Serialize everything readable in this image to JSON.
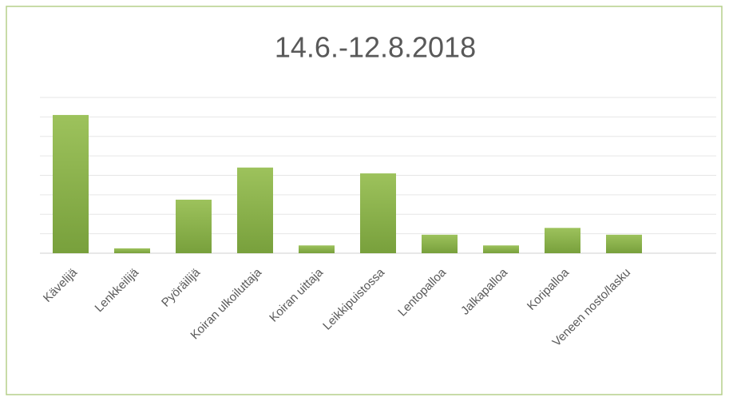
{
  "chart_data": {
    "type": "bar",
    "title": "14.6.-12.8.2018",
    "categories": [
      "Kävelijä",
      "Lenkkeilijä",
      "Pyöräilijä",
      "Koiran ulkoiluttaja",
      "Koiran uittaja",
      "Leikkipuistossa",
      "Lentopalloa",
      "Jalkapalloa",
      "Koripalloa",
      "Veneen nosto/lasku"
    ],
    "values": [
      7.1,
      0.25,
      2.75,
      4.4,
      0.4,
      4.1,
      0.95,
      0.4,
      1.3,
      0.95
    ],
    "color": "#8bb050",
    "ylim": [
      0,
      8
    ],
    "yticks": [
      0,
      1,
      2,
      3,
      4,
      5,
      6,
      7,
      8
    ],
    "grid": true
  }
}
